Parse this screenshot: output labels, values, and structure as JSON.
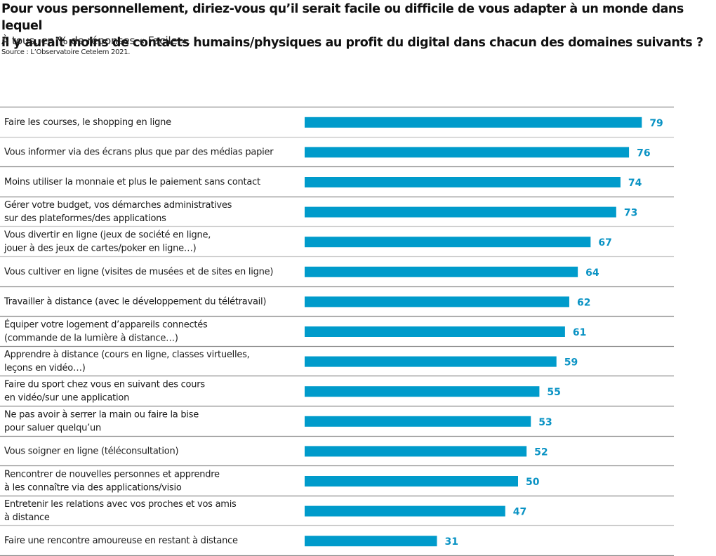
{
  "header": {
    "title_line1": "Pour vous personnellement, diriez-vous qu’il serait facile ou difficile de vous adapter à un monde dans lequel",
    "title_line2": "il y aurait moins de contacts humains/physiques au profit du digital dans chacun des domaines suivants ?",
    "subtitle": "À tous, en % de réponses « Facile ».",
    "source": "Source : L’Observatoire Cetelem 2021."
  },
  "colors": {
    "bar": "#009bcb",
    "value_label": "#0a93c4",
    "separator_dark": "#8c8c8c",
    "separator_light": "#c9c9c9"
  },
  "chart_data": {
    "type": "bar",
    "orientation": "horizontal",
    "title": "Pour vous personnellement, diriez-vous qu’il serait facile ou difficile de vous adapter à un monde dans lequel il y aurait moins de contacts humains/physiques au profit du digital dans chacun des domaines suivants ?",
    "subtitle": "À tous, en % de réponses « Facile ».",
    "xlabel": "",
    "ylabel": "",
    "xlim": [
      0,
      100
    ],
    "grid": false,
    "legend": "none",
    "categories": [
      [
        "Faire les courses, le shopping en ligne"
      ],
      [
        "Vous informer via des écrans plus que par des médias papier"
      ],
      [
        "Moins utiliser la monnaie et plus le paiement sans contact"
      ],
      [
        "Gérer votre budget, vos démarches administratives",
        "sur des plateformes/des applications"
      ],
      [
        "Vous divertir en ligne (jeux de société en ligne,",
        "jouer à des jeux de cartes/poker en ligne…)"
      ],
      [
        "Vous cultiver en ligne (visites de musées et de sites en ligne)"
      ],
      [
        "Travailler à distance (avec le développement du télétravail)"
      ],
      [
        "Équiper votre logement d’appareils connectés",
        "(commande de la lumière à distance…)"
      ],
      [
        "Apprendre à distance (cours en ligne, classes virtuelles,",
        "leçons en vidéo…)"
      ],
      [
        "Faire du sport chez vous en suivant des cours",
        "en vidéo/sur une application"
      ],
      [
        "Ne pas avoir à serrer la main ou faire la bise",
        "pour saluer quelqu’un"
      ],
      [
        "Vous soigner en ligne (téléconsultation)"
      ],
      [
        "Rencontrer de nouvelles personnes et apprendre",
        "à les connaître via des applications/visio"
      ],
      [
        "Entretenir les relations avec vos proches et vos amis",
        "à distance"
      ],
      [
        "Faire une rencontre amoureuse en restant à distance"
      ]
    ],
    "values": [
      79,
      76,
      74,
      73,
      67,
      64,
      62,
      61,
      59,
      55,
      53,
      52,
      50,
      47,
      31
    ],
    "unit": "%"
  }
}
